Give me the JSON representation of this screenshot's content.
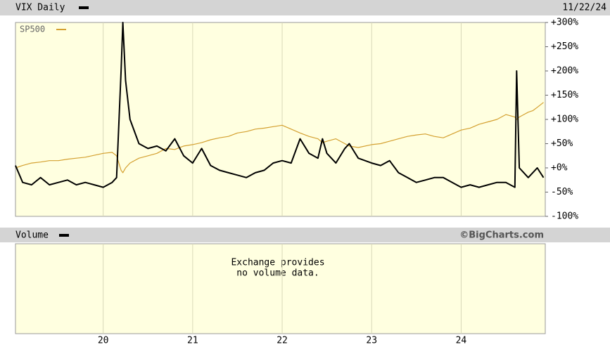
{
  "chart_data": {
    "type": "line",
    "date": "11/22/24",
    "credit": "©BigCharts.com",
    "xlim": [
      2019.02,
      2024.94
    ],
    "xticks": [
      {
        "value": 2020,
        "label": "20"
      },
      {
        "value": 2021,
        "label": "21"
      },
      {
        "value": 2022,
        "label": "22"
      },
      {
        "value": 2023,
        "label": "23"
      },
      {
        "value": 2024,
        "label": "24"
      }
    ],
    "ylim": [
      -100,
      300
    ],
    "yticks": [
      {
        "value": 300,
        "label": "+300%"
      },
      {
        "value": 250,
        "label": "+250%"
      },
      {
        "value": 200,
        "label": "+200%"
      },
      {
        "value": 150,
        "label": "+150%"
      },
      {
        "value": 100,
        "label": "+100%"
      },
      {
        "value": 50,
        "label": "+50%"
      },
      {
        "value": 0,
        "label": "+0%"
      },
      {
        "value": -50,
        "label": "-50%"
      },
      {
        "value": -100,
        "label": "-100%"
      }
    ],
    "x": [
      2019.02,
      2019.1,
      2019.2,
      2019.3,
      2019.4,
      2019.5,
      2019.6,
      2019.7,
      2019.8,
      2019.9,
      2020.0,
      2020.1,
      2020.15,
      2020.2,
      2020.22,
      2020.25,
      2020.3,
      2020.4,
      2020.5,
      2020.6,
      2020.7,
      2020.8,
      2020.9,
      2021.0,
      2021.1,
      2021.2,
      2021.3,
      2021.4,
      2021.5,
      2021.6,
      2021.7,
      2021.8,
      2021.9,
      2022.0,
      2022.1,
      2022.2,
      2022.3,
      2022.4,
      2022.45,
      2022.5,
      2022.6,
      2022.7,
      2022.75,
      2022.85,
      2023.0,
      2023.1,
      2023.2,
      2023.3,
      2023.4,
      2023.5,
      2023.6,
      2023.7,
      2023.8,
      2023.9,
      2024.0,
      2024.1,
      2024.2,
      2024.3,
      2024.4,
      2024.5,
      2024.6,
      2024.62,
      2024.65,
      2024.7,
      2024.75,
      2024.8,
      2024.85,
      2024.92
    ],
    "series": [
      {
        "name": "VIX Daily",
        "color": "#000000",
        "values": [
          5,
          -30,
          -35,
          -20,
          -35,
          -30,
          -25,
          -35,
          -30,
          -35,
          -40,
          -30,
          -20,
          200,
          300,
          180,
          100,
          50,
          40,
          45,
          35,
          60,
          25,
          10,
          40,
          5,
          -5,
          -10,
          -15,
          -20,
          -10,
          -5,
          10,
          15,
          10,
          60,
          30,
          20,
          60,
          30,
          10,
          40,
          50,
          20,
          10,
          5,
          15,
          -10,
          -20,
          -30,
          -25,
          -20,
          -20,
          -30,
          -40,
          -35,
          -40,
          -35,
          -30,
          -30,
          -40,
          200,
          0,
          -10,
          -20,
          -10,
          0,
          -20
        ]
      },
      {
        "name": "SP500",
        "color": "#d4a030",
        "values": [
          0,
          5,
          10,
          12,
          15,
          15,
          18,
          20,
          22,
          26,
          30,
          32,
          25,
          -5,
          -10,
          0,
          10,
          20,
          25,
          30,
          40,
          38,
          45,
          48,
          52,
          58,
          62,
          65,
          72,
          75,
          80,
          82,
          85,
          88,
          80,
          72,
          65,
          60,
          52,
          55,
          60,
          50,
          45,
          42,
          48,
          50,
          55,
          60,
          65,
          68,
          70,
          65,
          62,
          70,
          78,
          82,
          90,
          95,
          100,
          110,
          105,
          100,
          105,
          110,
          115,
          118,
          125,
          135
        ]
      }
    ],
    "volume": {
      "title": "Volume",
      "message": [
        "Exchange provides",
        "no volume data."
      ]
    }
  }
}
